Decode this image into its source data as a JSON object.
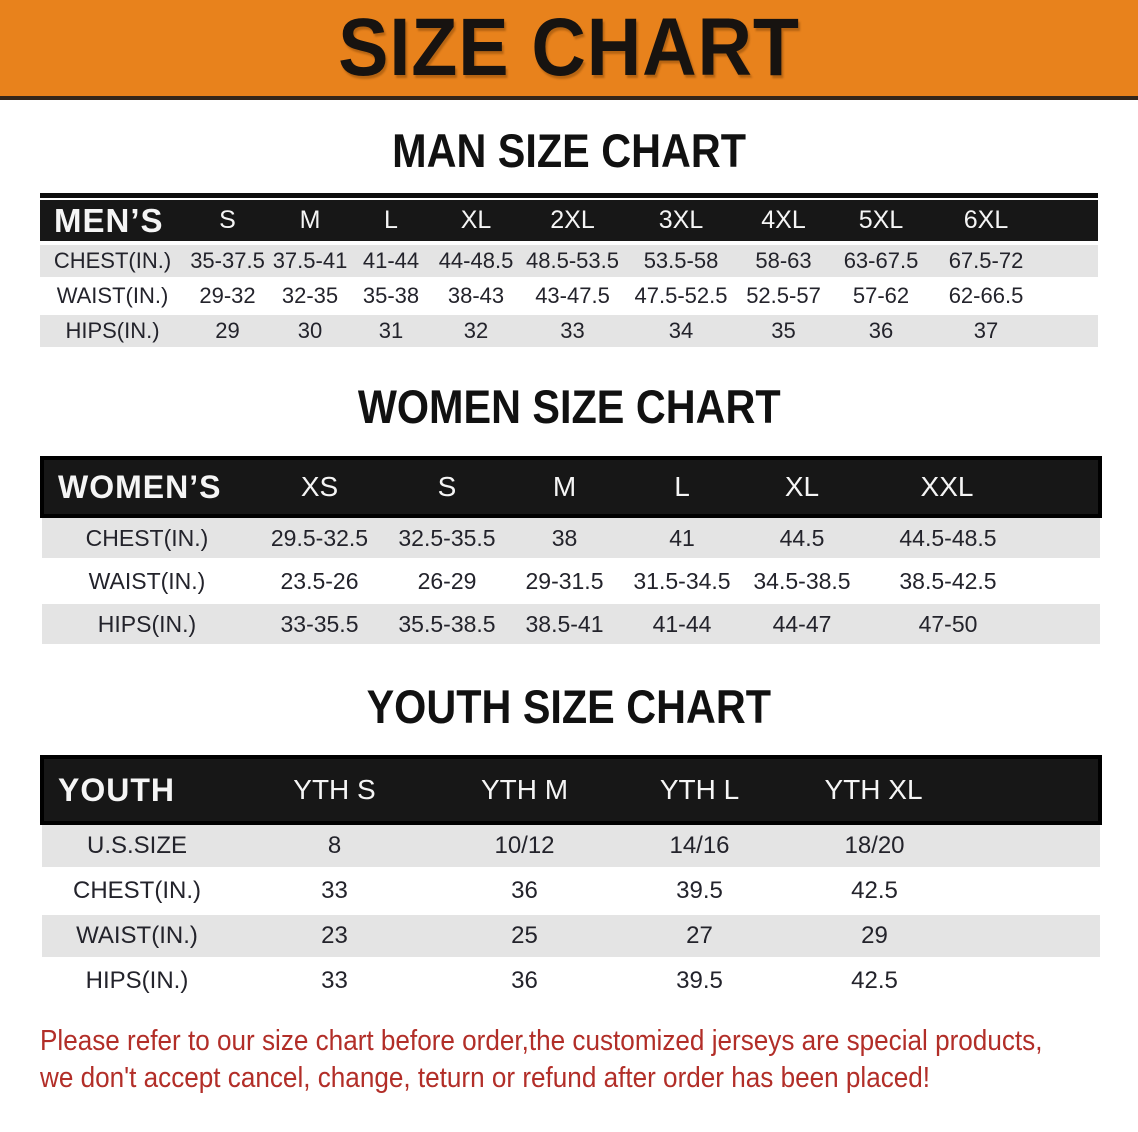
{
  "banner": {
    "title": "SIZE CHART"
  },
  "sections": [
    {
      "heading": "MAN SIZE CHART",
      "table": {
        "label": "MEN’S",
        "columns": [
          "S",
          "M",
          "L",
          "XL",
          "2XL",
          "3XL",
          "4XL",
          "5XL",
          "6XL"
        ],
        "rows": [
          {
            "label": "CHEST(IN.)",
            "values": [
              "35-37.5",
              "37.5-41",
              "41-44",
              "44-48.5",
              "48.5-53.5",
              "53.5-58",
              "58-63",
              "63-67.5",
              "67.5-72"
            ]
          },
          {
            "label": "WAIST(IN.)",
            "values": [
              "29-32",
              "32-35",
              "35-38",
              "38-43",
              "43-47.5",
              "47.5-52.5",
              "52.5-57",
              "57-62",
              "62-66.5"
            ]
          },
          {
            "label": "HIPS(IN.)",
            "values": [
              "29",
              "30",
              "31",
              "32",
              "33",
              "34",
              "35",
              "36",
              "37"
            ]
          }
        ]
      }
    },
    {
      "heading": "WOMEN SIZE CHART",
      "table": {
        "label": "WOMEN’S",
        "columns": [
          "XS",
          "S",
          "M",
          "L",
          "XL",
          "XXL"
        ],
        "rows": [
          {
            "label": "CHEST(IN.)",
            "values": [
              "29.5-32.5",
              "32.5-35.5",
              "38",
              "41",
              "44.5",
              "44.5-48.5"
            ]
          },
          {
            "label": "WAIST(IN.)",
            "values": [
              "23.5-26",
              "26-29",
              "29-31.5",
              "31.5-34.5",
              "34.5-38.5",
              "38.5-42.5"
            ]
          },
          {
            "label": "HIPS(IN.)",
            "values": [
              "33-35.5",
              "35.5-38.5",
              "38.5-41",
              "41-44",
              "44-47",
              "47-50"
            ]
          }
        ]
      }
    },
    {
      "heading": "YOUTH SIZE CHART",
      "table": {
        "label": "YOUTH",
        "columns": [
          "YTH S",
          "YTH M",
          "YTH L",
          "YTH XL"
        ],
        "rows": [
          {
            "label": "U.S.SIZE",
            "values": [
              "8",
              "10/12",
              "14/16",
              "18/20"
            ]
          },
          {
            "label": "CHEST(IN.)",
            "values": [
              "33",
              "36",
              "39.5",
              "42.5"
            ]
          },
          {
            "label": "WAIST(IN.)",
            "values": [
              "23",
              "25",
              "27",
              "29"
            ]
          },
          {
            "label": "HIPS(IN.)",
            "values": [
              "33",
              "36",
              "39.5",
              "42.5"
            ]
          }
        ]
      }
    }
  ],
  "footer_note": {
    "line1": "Please refer to our size chart before order,the customized jerseys are special products,",
    "line2": "we don't accept cancel, change, teturn or refund after order has been placed!"
  },
  "colors": {
    "banner_orange": "#e8821c",
    "header_black": "#171717",
    "row_gray": "#e4e4e4",
    "note_red": "#b22e28",
    "heading_black": "#111111"
  }
}
